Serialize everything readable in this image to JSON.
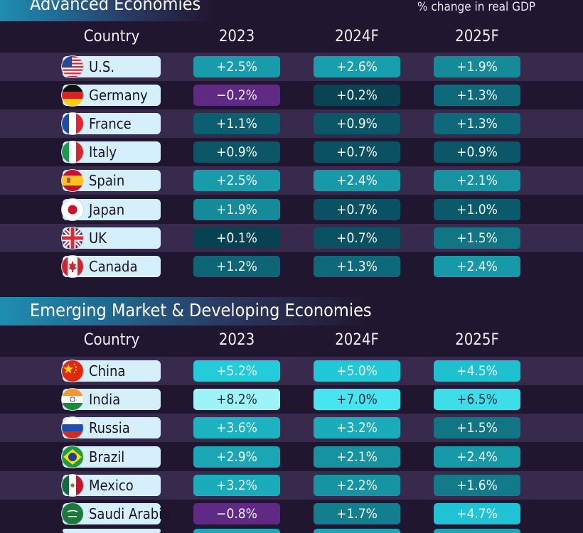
{
  "subtitle": "% change in real GDP",
  "colors": {
    "background": "#21162f",
    "row_band": "#382a4d",
    "pill_country": "#d6f0fb",
    "scale": "diverging: negative = purple, positive = dark teal to bright cyan"
  },
  "chart_data": [
    {
      "type": "table",
      "title": "Advanced Economies",
      "columns": [
        "Country",
        "2023",
        "2024F",
        "2025F"
      ],
      "rows": [
        {
          "country": "U.S.",
          "flag": "us-flag-icon",
          "values": [
            2.5,
            2.6,
            1.9
          ],
          "labels": [
            "+2.5%",
            "+2.6%",
            "+1.9%"
          ]
        },
        {
          "country": "Germany",
          "flag": "germany-flag-icon",
          "values": [
            -0.2,
            0.2,
            1.3
          ],
          "labels": [
            "−0.2%",
            "+0.2%",
            "+1.3%"
          ]
        },
        {
          "country": "France",
          "flag": "france-flag-icon",
          "values": [
            1.1,
            0.9,
            1.3
          ],
          "labels": [
            "+1.1%",
            "+0.9%",
            "+1.3%"
          ]
        },
        {
          "country": "Italy",
          "flag": "italy-flag-icon",
          "values": [
            0.9,
            0.7,
            0.9
          ],
          "labels": [
            "+0.9%",
            "+0.7%",
            "+0.9%"
          ]
        },
        {
          "country": "Spain",
          "flag": "spain-flag-icon",
          "values": [
            2.5,
            2.4,
            2.1
          ],
          "labels": [
            "+2.5%",
            "+2.4%",
            "+2.1%"
          ]
        },
        {
          "country": "Japan",
          "flag": "japan-flag-icon",
          "values": [
            1.9,
            0.7,
            1.0
          ],
          "labels": [
            "+1.9%",
            "+0.7%",
            "+1.0%"
          ]
        },
        {
          "country": "UK",
          "flag": "uk-flag-icon",
          "values": [
            0.1,
            0.7,
            1.5
          ],
          "labels": [
            "+0.1%",
            "+0.7%",
            "+1.5%"
          ]
        },
        {
          "country": "Canada",
          "flag": "canada-flag-icon",
          "values": [
            1.2,
            1.3,
            2.4
          ],
          "labels": [
            "+1.2%",
            "+1.3%",
            "+2.4%"
          ]
        }
      ]
    },
    {
      "type": "table",
      "title": "Emerging Market & Developing Economies",
      "columns": [
        "Country",
        "2023",
        "2024F",
        "2025F"
      ],
      "rows": [
        {
          "country": "China",
          "flag": "china-flag-icon",
          "values": [
            5.2,
            5.0,
            4.5
          ],
          "labels": [
            "+5.2%",
            "+5.0%",
            "+4.5%"
          ]
        },
        {
          "country": "India",
          "flag": "india-flag-icon",
          "values": [
            8.2,
            7.0,
            6.5
          ],
          "labels": [
            "+8.2%",
            "+7.0%",
            "+6.5%"
          ]
        },
        {
          "country": "Russia",
          "flag": "russia-flag-icon",
          "values": [
            3.6,
            3.2,
            1.5
          ],
          "labels": [
            "+3.6%",
            "+3.2%",
            "+1.5%"
          ]
        },
        {
          "country": "Brazil",
          "flag": "brazil-flag-icon",
          "values": [
            2.9,
            2.1,
            2.4
          ],
          "labels": [
            "+2.9%",
            "+2.1%",
            "+2.4%"
          ]
        },
        {
          "country": "Mexico",
          "flag": "mexico-flag-icon",
          "values": [
            3.2,
            2.2,
            1.6
          ],
          "labels": [
            "+3.2%",
            "+2.2%",
            "+1.6%"
          ]
        },
        {
          "country": "Saudi Arabia",
          "flag": "saudi-arabia-flag-icon",
          "values": [
            -0.8,
            1.7,
            4.7
          ],
          "labels": [
            "−0.8%",
            "+1.7%",
            "+4.7%"
          ]
        }
      ]
    }
  ]
}
